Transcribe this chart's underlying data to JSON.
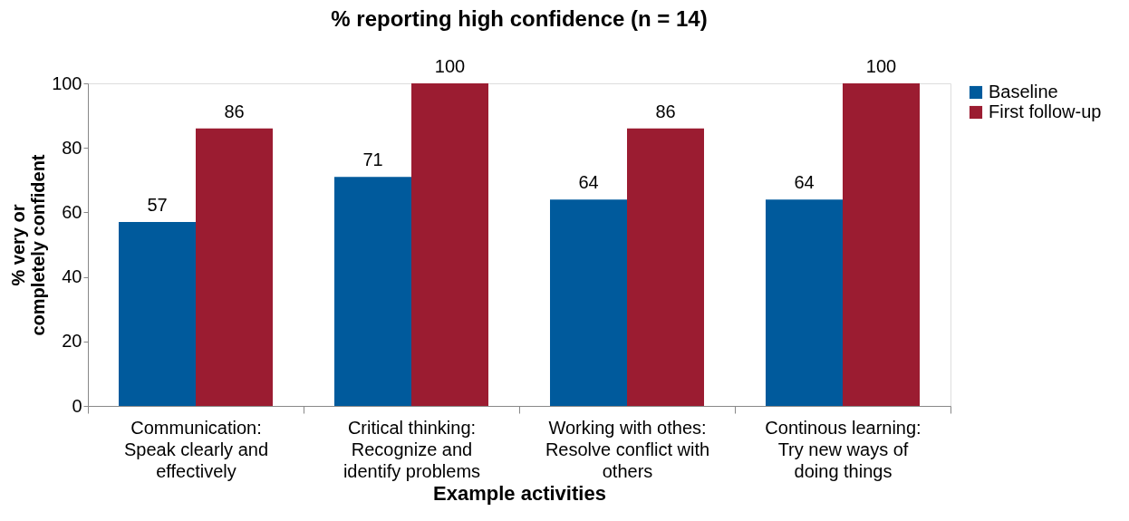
{
  "chart_data": {
    "type": "bar",
    "title": "% reporting high confidence (n = 14)",
    "xlabel": "Example activities",
    "ylabel": "% very or completely confident",
    "categories": [
      "Communication:\nSpeak clearly and\neffectively",
      "Critical thinking:\nRecognize and\nidentify problems",
      "Working with othes:\nResolve conflict with\nothers",
      "Continous learning:\nTry new ways of\ndoing things"
    ],
    "series": [
      {
        "name": "Baseline",
        "color": "#005a9c",
        "values": [
          57,
          71,
          64,
          64
        ]
      },
      {
        "name": "First follow-up",
        "color": "#9b1c31",
        "values": [
          86,
          100,
          86,
          100
        ]
      }
    ],
    "ylim": [
      0,
      100
    ],
    "yticks": [
      0,
      20,
      40,
      60,
      80,
      100
    ],
    "grid": false,
    "legend": "right",
    "data_labels": true
  }
}
